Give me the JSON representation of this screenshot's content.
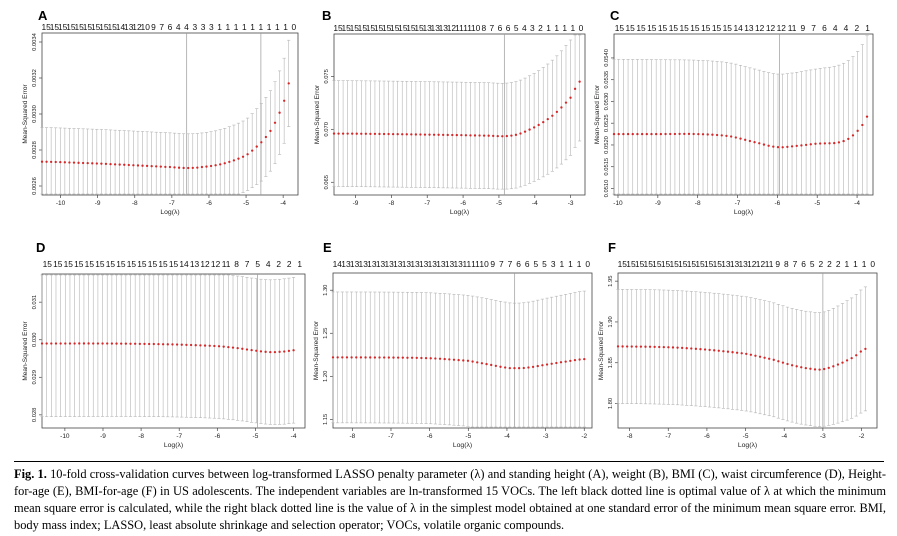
{
  "figure": {
    "caption_label": "Fig. 1.",
    "caption_text": "10-fold cross-validation curves between log-transformed LASSO penalty parameter (λ) and standing height (A), weight (B), BMI (C), waist circumference (D), Height-for-age (E), BMI-for-age (F) in US adolescents. The independent variables are ln-transformed 15 VOCs. The left black dotted line is optimal value of λ at which the minimum mean square error is calculated, while the right black dotted line is the value of λ in the simplest model obtained at one standard error of the minimum mean square error. BMI, body mass index; LASSO, least absolute shrinkage and selection operator; VOCs, volatile organic compounds."
  },
  "colors": {
    "points": "#d62728",
    "error_bars": "#b5b5b5",
    "axis": "#444444",
    "vline": "#999999"
  },
  "chart_data": [
    {
      "panel": "A",
      "type": "scatter",
      "xlabel": "Log(λ)",
      "ylabel": "Mean-Squared Error",
      "xlim": [
        -10.5,
        -3.6
      ],
      "ylim": [
        0.00255,
        0.00345
      ],
      "xticks": [
        -10,
        -9,
        -8,
        -7,
        -6,
        -5,
        -4
      ],
      "yticks": [
        0.0026,
        0.0028,
        0.003,
        0.0032,
        0.0034
      ],
      "ytick_labels": [
        "0.0026",
        "0.0028",
        "0.0030",
        "0.0032",
        "0.0034"
      ],
      "top_labels": [
        "15",
        "15",
        "15",
        "15",
        "15",
        "15",
        "15",
        "15",
        "15",
        "14",
        "13",
        "12",
        "10",
        "9",
        "7",
        "6",
        "4",
        "4",
        "3",
        "3",
        "3",
        "1",
        "1",
        "1",
        "1",
        "1",
        "1",
        "1",
        "1",
        "1",
        "0"
      ],
      "vlines": [
        -6.6,
        -4.6
      ],
      "curve": {
        "x": [
          -10.5,
          -9,
          -8,
          -7,
          -6.6,
          -6.2,
          -5.6,
          -5.0,
          -4.6,
          -4.3,
          -4.0,
          -3.85
        ],
        "y": [
          0.002735,
          0.002725,
          0.002715,
          0.002705,
          0.0027,
          0.002705,
          0.002725,
          0.00277,
          0.00284,
          0.00292,
          0.00305,
          0.00317
        ]
      },
      "se": {
        "x": [
          -10.5,
          -7,
          -6.6,
          -6,
          -5.5,
          -5,
          -4.6,
          -4.3,
          -4.0,
          -3.85
        ],
        "y": [
          0.00019,
          0.00019,
          0.00019,
          0.00019,
          0.000195,
          0.0002,
          0.000215,
          0.000225,
          0.000235,
          0.00024
        ]
      }
    },
    {
      "panel": "B",
      "type": "scatter",
      "xlabel": "Log(λ)",
      "ylabel": "Mean-Squared Error",
      "xlim": [
        -9.6,
        -2.6
      ],
      "ylim": [
        0.0638,
        0.079
      ],
      "xticks": [
        -9,
        -8,
        -7,
        -6,
        -5,
        -4,
        -3
      ],
      "yticks": [
        0.065,
        0.07,
        0.075
      ],
      "ytick_labels": [
        "0.065",
        "0.070",
        "0.075"
      ],
      "top_labels": [
        "15",
        "15",
        "15",
        "15",
        "15",
        "15",
        "15",
        "15",
        "15",
        "15",
        "15",
        "13",
        "13",
        "13",
        "12",
        "11",
        "11",
        "10",
        "8",
        "7",
        "6",
        "6",
        "5",
        "4",
        "3",
        "2",
        "1",
        "1",
        "1",
        "1",
        "0"
      ],
      "vlines": [
        -4.85
      ],
      "curve": {
        "x": [
          -9.6,
          -8,
          -6,
          -5.3,
          -4.85,
          -4.5,
          -4.2,
          -3.8,
          -3.4,
          -3.0,
          -2.75
        ],
        "y": [
          0.0696,
          0.06955,
          0.06945,
          0.0694,
          0.06935,
          0.0695,
          0.0699,
          0.0706,
          0.0716,
          0.073,
          0.0745
        ]
      },
      "se": {
        "x": [
          -9.6,
          -5,
          -4.85,
          -4,
          -3.5,
          -3,
          -2.75
        ],
        "y": [
          0.005,
          0.005,
          0.005,
          0.0051,
          0.00525,
          0.00545,
          0.0056
        ]
      }
    },
    {
      "panel": "C",
      "type": "scatter",
      "xlabel": "Log(λ)",
      "ylabel": "Mean-Squared Error",
      "xlim": [
        -10.1,
        -3.6
      ],
      "ylim": [
        0.05085,
        0.05455
      ],
      "xticks": [
        -10,
        -9,
        -8,
        -7,
        -6,
        -5,
        -4
      ],
      "yticks": [
        0.051,
        0.0515,
        0.052,
        0.0525,
        0.053,
        0.0535,
        0.054
      ],
      "ytick_labels": [
        "0.0510",
        "0.0515",
        "0.0520",
        "0.0525",
        "0.0530",
        "0.0535",
        "0.0540"
      ],
      "top_labels": [
        "15",
        "15",
        "15",
        "15",
        "15",
        "15",
        "15",
        "15",
        "15",
        "15",
        "15",
        "14",
        "13",
        "12",
        "12",
        "12",
        "11",
        "9",
        "7",
        "6",
        "4",
        "4",
        "2",
        "1"
      ],
      "vlines": [
        -5.95
      ],
      "curve": {
        "x": [
          -10.1,
          -9,
          -8,
          -7.2,
          -6.5,
          -6.0,
          -5.5,
          -5.0,
          -4.5,
          -4.2,
          -3.9,
          -3.75
        ],
        "y": [
          0.05225,
          0.05225,
          0.05225,
          0.0522,
          0.05205,
          0.05195,
          0.05198,
          0.05203,
          0.05205,
          0.05215,
          0.0524,
          0.05265
        ]
      },
      "se": {
        "x": [
          -10.1,
          -6,
          -5,
          -4,
          -3.75
        ],
        "y": [
          0.00172,
          0.00168,
          0.00172,
          0.00182,
          0.00186
        ]
      }
    },
    {
      "panel": "D",
      "type": "scatter",
      "xlabel": "Log(λ)",
      "ylabel": "Mean-Squared Error",
      "xlim": [
        -10.6,
        -3.7
      ],
      "ylim": [
        0.02765,
        0.03175
      ],
      "xticks": [
        -10,
        -9,
        -8,
        -7,
        -6,
        -5,
        -4
      ],
      "yticks": [
        0.028,
        0.029,
        0.03,
        0.031
      ],
      "ytick_labels": [
        "0.028",
        "0.029",
        "0.030",
        "0.031"
      ],
      "top_labels": [
        "15",
        "15",
        "15",
        "15",
        "15",
        "15",
        "15",
        "15",
        "15",
        "15",
        "15",
        "15",
        "15",
        "14",
        "13",
        "12",
        "12",
        "11",
        "8",
        "7",
        "5",
        "4",
        "2",
        "2",
        "1"
      ],
      "vlines": [
        -4.95
      ],
      "curve": {
        "x": [
          -10.6,
          -9,
          -8,
          -7,
          -6,
          -5.5,
          -5.0,
          -4.6,
          -4.2,
          -4.0
        ],
        "y": [
          0.0299,
          0.0299,
          0.02989,
          0.02987,
          0.02983,
          0.02978,
          0.02971,
          0.02967,
          0.02969,
          0.02972
        ]
      },
      "se": {
        "x": [
          -10.6,
          -5,
          -4.0
        ],
        "y": [
          0.00195,
          0.00192,
          0.00194
        ]
      }
    },
    {
      "panel": "E",
      "type": "scatter",
      "xlabel": "Log(λ)",
      "ylabel": "Mean-Squared Error",
      "xlim": [
        -8.5,
        -1.8
      ],
      "ylim": [
        1.14,
        1.32
      ],
      "xticks": [
        -8,
        -7,
        -6,
        -5,
        -4,
        -3,
        -2
      ],
      "yticks": [
        1.15,
        1.2,
        1.25,
        1.3
      ],
      "ytick_labels": [
        "1.15",
        "1.20",
        "1.25",
        "1.30"
      ],
      "top_labels": [
        "14",
        "13",
        "13",
        "13",
        "13",
        "13",
        "13",
        "13",
        "13",
        "13",
        "13",
        "13",
        "13",
        "13",
        "13",
        "11",
        "11",
        "10",
        "9",
        "7",
        "7",
        "6",
        "6",
        "5",
        "5",
        "3",
        "1",
        "1",
        "1",
        "0"
      ],
      "vlines": [
        -3.8
      ],
      "curve": {
        "x": [
          -8.5,
          -7,
          -6,
          -5,
          -4.5,
          -4.0,
          -3.8,
          -3.5,
          -3.0,
          -2.5,
          -2.0
        ],
        "y": [
          1.222,
          1.2218,
          1.221,
          1.218,
          1.214,
          1.21,
          1.2095,
          1.21,
          1.2135,
          1.217,
          1.22
        ]
      },
      "se": {
        "x": [
          -8.5,
          -4,
          -3.8,
          -3,
          -2
        ],
        "y": [
          0.076,
          0.076,
          0.0755,
          0.077,
          0.079
        ]
      }
    },
    {
      "panel": "F",
      "type": "scatter",
      "xlabel": "Log(λ)",
      "ylabel": "Mean-Squared Error",
      "xlim": [
        -8.3,
        -1.6
      ],
      "ylim": [
        1.77,
        1.96
      ],
      "xticks": [
        -8,
        -7,
        -6,
        -5,
        -4,
        -3,
        -2
      ],
      "yticks": [
        1.8,
        1.85,
        1.9,
        1.95
      ],
      "ytick_labels": [
        "1.80",
        "1.85",
        "1.90",
        "1.95"
      ],
      "top_labels": [
        "15",
        "15",
        "15",
        "15",
        "15",
        "15",
        "15",
        "15",
        "15",
        "15",
        "15",
        "15",
        "13",
        "13",
        "13",
        "12",
        "12",
        "11",
        "9",
        "8",
        "7",
        "6",
        "5",
        "2",
        "2",
        "2",
        "1",
        "1",
        "1",
        "0"
      ],
      "vlines": [
        -3.0
      ],
      "curve": {
        "x": [
          -8.3,
          -7,
          -6,
          -5,
          -4.3,
          -3.8,
          -3.3,
          -3.0,
          -2.6,
          -2.2,
          -1.9
        ],
        "y": [
          1.87,
          1.869,
          1.866,
          1.861,
          1.854,
          1.847,
          1.8425,
          1.842,
          1.848,
          1.857,
          1.867
        ]
      },
      "se": {
        "x": [
          -8.3,
          -5,
          -3.0,
          -2.2,
          -1.9
        ],
        "y": [
          0.07,
          0.07,
          0.07,
          0.074,
          0.076
        ]
      }
    }
  ]
}
